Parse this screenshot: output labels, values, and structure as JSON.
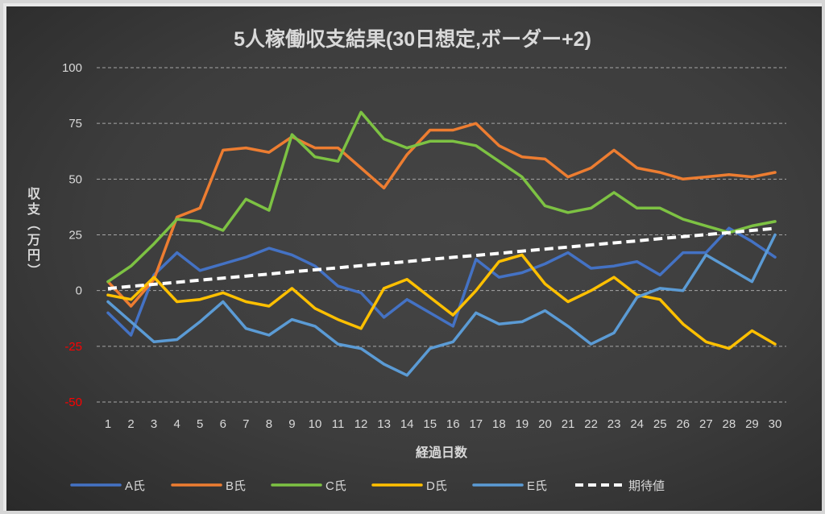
{
  "chart_data": {
    "type": "line",
    "title": "5人稼働収支結果(30日想定,ボーダー+2)",
    "xlabel": "経過日数",
    "ylabel": "収支（万円）",
    "ylim": [
      -50,
      100
    ],
    "yticks": [
      100,
      75,
      50,
      25,
      0,
      -25,
      -50
    ],
    "ytick_labels": [
      "100",
      "75",
      "50",
      "25",
      "0",
      "-25",
      "-50"
    ],
    "negative_tick_color": "#FF0000",
    "grid": true,
    "legend_position": "bottom",
    "x": [
      1,
      2,
      3,
      4,
      5,
      6,
      7,
      8,
      9,
      10,
      11,
      12,
      13,
      14,
      15,
      16,
      17,
      18,
      19,
      20,
      21,
      22,
      23,
      24,
      25,
      26,
      27,
      28,
      29,
      30
    ],
    "series": [
      {
        "name": "A氏",
        "color": "#4472C4",
        "dashed": false,
        "values": [
          -10,
          -20,
          7,
          17,
          9,
          12,
          15,
          19,
          16,
          11,
          2,
          -1,
          -12,
          -4,
          -10,
          -16,
          14,
          6,
          8,
          12,
          17,
          10,
          11,
          13,
          7,
          17,
          17,
          28,
          22,
          15
        ]
      },
      {
        "name": "B氏",
        "color": "#ED7D31",
        "dashed": false,
        "values": [
          4,
          -7,
          5,
          33,
          37,
          63,
          64,
          62,
          69,
          64,
          64,
          55,
          46,
          61,
          72,
          72,
          75,
          65,
          60,
          59,
          51,
          55,
          63,
          55,
          53,
          50,
          51,
          52,
          51,
          53
        ]
      },
      {
        "name": "C氏",
        "color": "#7DC243",
        "dashed": false,
        "values": [
          4,
          11,
          21,
          32,
          31,
          27,
          41,
          36,
          70,
          60,
          58,
          80,
          68,
          64,
          67,
          67,
          65,
          58,
          51,
          38,
          35,
          37,
          44,
          37,
          37,
          32,
          29,
          26,
          29,
          31
        ]
      },
      {
        "name": "D氏",
        "color": "#FFC000",
        "dashed": false,
        "values": [
          -2,
          -4,
          6,
          -5,
          -4,
          -1,
          -5,
          -7,
          1,
          -8,
          -13,
          -17,
          1,
          5,
          -3,
          -11,
          0,
          13,
          16,
          3,
          -5,
          0,
          6,
          -2,
          -4,
          -15,
          -23,
          -26,
          -18,
          -24
        ]
      },
      {
        "name": "E氏",
        "color": "#5B9BD5",
        "dashed": false,
        "values": [
          -5,
          -14,
          -23,
          -22,
          -14,
          -5,
          -17,
          -20,
          -13,
          -16,
          -24,
          -26,
          -33,
          -38,
          -26,
          -23,
          -10,
          -15,
          -14,
          -9,
          -16,
          -24,
          -19,
          -3,
          1,
          0,
          16,
          10,
          4,
          25
        ]
      },
      {
        "name": "期待値",
        "color": "#FFFFFF",
        "dashed": true,
        "values": [
          0.9,
          1.9,
          2.8,
          3.7,
          4.7,
          5.6,
          6.5,
          7.4,
          8.4,
          9.3,
          10.2,
          11.2,
          12.1,
          13.0,
          14.0,
          14.9,
          15.8,
          16.7,
          17.7,
          18.6,
          19.5,
          20.5,
          21.4,
          22.3,
          23.3,
          24.2,
          25.1,
          26.0,
          27.0,
          27.9
        ]
      }
    ]
  }
}
